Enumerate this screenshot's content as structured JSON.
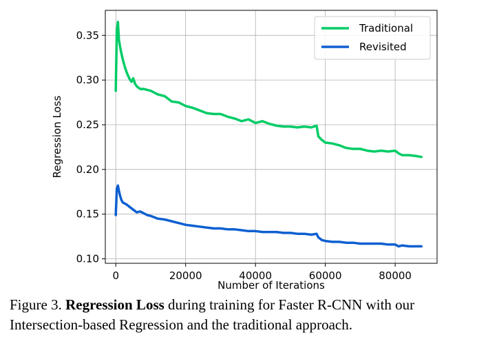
{
  "chart_data": {
    "type": "line",
    "xlabel": "Number of Iterations",
    "ylabel": "Regression Loss",
    "xlim": [
      -3000,
      92000
    ],
    "ylim": [
      0.095,
      0.378
    ],
    "xticks": [
      0,
      20000,
      40000,
      60000,
      80000
    ],
    "xtick_labels": [
      "0",
      "20000",
      "40000",
      "60000",
      "80000"
    ],
    "yticks": [
      0.1,
      0.15,
      0.2,
      0.25,
      0.3,
      0.35
    ],
    "ytick_labels": [
      "0.10",
      "0.15",
      "0.20",
      "0.25",
      "0.30",
      "0.35"
    ],
    "grid": true,
    "legend_position": "top-right",
    "series": [
      {
        "name": "Traditional",
        "color": "#00cc66",
        "x": [
          0,
          300,
          600,
          900,
          1200,
          1600,
          2000,
          2500,
          3000,
          3500,
          4000,
          4500,
          5000,
          5500,
          6000,
          7000,
          8000,
          9000,
          10000,
          12000,
          14000,
          16000,
          18000,
          20000,
          22000,
          24000,
          26000,
          28000,
          30000,
          32000,
          34000,
          36000,
          38000,
          40000,
          42000,
          44000,
          46000,
          48000,
          50000,
          52000,
          54000,
          56000,
          57500,
          58000,
          59000,
          60000,
          62000,
          64000,
          66000,
          68000,
          70000,
          72000,
          74000,
          76000,
          78000,
          80000,
          81000,
          82000,
          84000,
          86000,
          87500
        ],
        "y": [
          0.288,
          0.355,
          0.365,
          0.345,
          0.338,
          0.33,
          0.323,
          0.316,
          0.31,
          0.305,
          0.301,
          0.298,
          0.302,
          0.296,
          0.293,
          0.29,
          0.29,
          0.289,
          0.288,
          0.284,
          0.282,
          0.276,
          0.275,
          0.271,
          0.269,
          0.266,
          0.263,
          0.262,
          0.262,
          0.259,
          0.257,
          0.254,
          0.256,
          0.252,
          0.254,
          0.251,
          0.249,
          0.248,
          0.248,
          0.247,
          0.248,
          0.247,
          0.249,
          0.237,
          0.233,
          0.23,
          0.229,
          0.227,
          0.224,
          0.223,
          0.223,
          0.221,
          0.22,
          0.221,
          0.22,
          0.221,
          0.218,
          0.216,
          0.216,
          0.215,
          0.214
        ]
      },
      {
        "name": "Revisited",
        "color": "#0d5fd1",
        "x": [
          0,
          300,
          600,
          900,
          1200,
          1600,
          2000,
          2500,
          3000,
          4000,
          5000,
          6000,
          7000,
          8000,
          9000,
          10000,
          12000,
          14000,
          16000,
          18000,
          20000,
          22000,
          24000,
          26000,
          28000,
          30000,
          32000,
          34000,
          36000,
          38000,
          40000,
          42000,
          44000,
          46000,
          48000,
          50000,
          52000,
          54000,
          56000,
          57500,
          58000,
          59000,
          60000,
          62000,
          64000,
          66000,
          68000,
          70000,
          72000,
          74000,
          76000,
          78000,
          80000,
          81000,
          82000,
          84000,
          86000,
          87500
        ],
        "y": [
          0.149,
          0.178,
          0.182,
          0.176,
          0.171,
          0.166,
          0.163,
          0.162,
          0.161,
          0.158,
          0.155,
          0.152,
          0.153,
          0.151,
          0.149,
          0.148,
          0.145,
          0.144,
          0.142,
          0.14,
          0.138,
          0.137,
          0.136,
          0.135,
          0.134,
          0.134,
          0.133,
          0.133,
          0.132,
          0.131,
          0.131,
          0.13,
          0.13,
          0.13,
          0.129,
          0.129,
          0.128,
          0.128,
          0.127,
          0.128,
          0.124,
          0.121,
          0.12,
          0.119,
          0.119,
          0.118,
          0.118,
          0.117,
          0.117,
          0.117,
          0.117,
          0.116,
          0.116,
          0.114,
          0.115,
          0.114,
          0.114,
          0.114
        ]
      }
    ]
  },
  "caption": {
    "prefix": "Figure 3. ",
    "bold": "Regression Loss",
    "rest": " during training for Faster R-CNN with our Intersection-based Regression and the traditional approach."
  }
}
